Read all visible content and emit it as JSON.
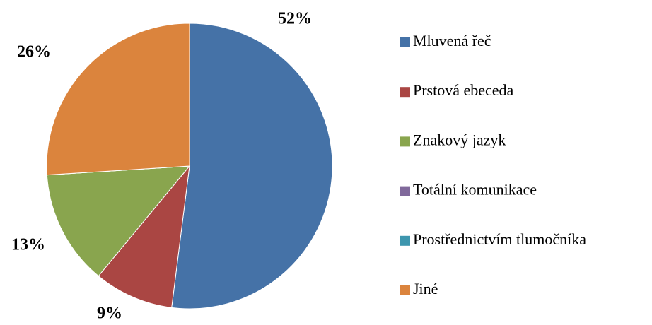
{
  "chart_data": {
    "type": "pie",
    "categories": [
      "Mluvená řeč",
      "Prstová ebeceda",
      "Znakový jazyk",
      "Totální komunikace",
      "Prostřednictvím tlumočníka",
      "Jiné"
    ],
    "values": [
      52,
      9,
      13,
      0,
      0,
      26
    ],
    "value_labels": [
      "52%",
      "9%",
      "13%",
      null,
      null,
      "26%"
    ],
    "colors": [
      "#4572a7",
      "#aa4643",
      "#89a54e",
      "#80699b",
      "#3d96ae",
      "#db843d"
    ],
    "legend": "right"
  }
}
